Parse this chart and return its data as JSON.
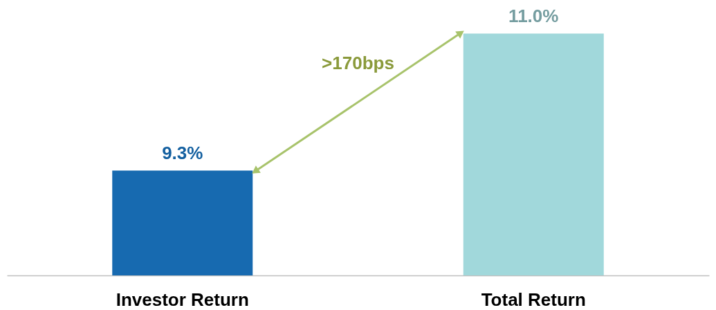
{
  "chart_data": {
    "type": "bar",
    "categories": [
      "Investor Return",
      "Total Return"
    ],
    "values": [
      9.3,
      11.0
    ],
    "colors": [
      "#176ab0",
      "#a1d8db"
    ],
    "value_labels": [
      "9.3%",
      "11.0%"
    ],
    "ylim": [
      8,
      11.4
    ],
    "tick_labels": "x",
    "annotations": [
      ">170bps"
    ]
  }
}
